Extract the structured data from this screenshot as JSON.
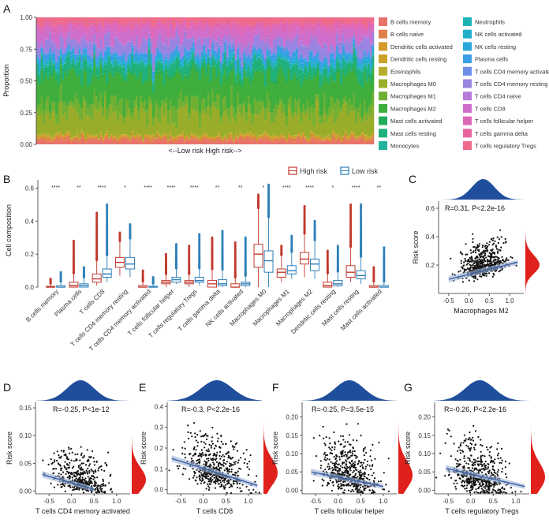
{
  "panels": {
    "A": "A",
    "B": "B",
    "C": "C",
    "D": "D",
    "E": "E",
    "F": "F",
    "G": "G"
  },
  "colors": {
    "high": "#c0392b",
    "low": "#2c7fb8",
    "density": "#1f4e9c",
    "density_right": "#e0201b",
    "fit": "#3b5fa5"
  },
  "chart_data": [
    {
      "id": "A",
      "type": "area",
      "title": "",
      "ylabel": "Proportion",
      "ylim": [
        0,
        1
      ],
      "yticks": [
        "0.00",
        "0.25",
        "0.50",
        "0.75",
        "1.00"
      ],
      "xlabel": "<--Low risk     High risk-->",
      "legend": [
        {
          "name": "B cells memory",
          "color": "#e8736b"
        },
        {
          "name": "B cells naive",
          "color": "#e0804a"
        },
        {
          "name": "Dendritic cells activated",
          "color": "#d59a2a"
        },
        {
          "name": "Dendritic cells resting",
          "color": "#c9a227"
        },
        {
          "name": "Eosinophils",
          "color": "#b7ad2c"
        },
        {
          "name": "Macrophages M0",
          "color": "#9aad2a"
        },
        {
          "name": "Macrophages M1",
          "color": "#6fb034"
        },
        {
          "name": "Macrophages M2",
          "color": "#3fae3c"
        },
        {
          "name": "Mast cells activated",
          "color": "#22ad5a"
        },
        {
          "name": "Mast cells resting",
          "color": "#1fb07c"
        },
        {
          "name": "Monocytes",
          "color": "#22b39c"
        },
        {
          "name": "Neutrophils",
          "color": "#20b3b5"
        },
        {
          "name": "NK cells activated",
          "color": "#22afca"
        },
        {
          "name": "NK cells resting",
          "color": "#2aa7dd"
        },
        {
          "name": "Plasma cells",
          "color": "#3b9de6"
        },
        {
          "name": "T cells CD4 memory activated",
          "color": "#6d8fe8"
        },
        {
          "name": "T cells CD4 memory resting",
          "color": "#9a84e2"
        },
        {
          "name": "T cells CD4 naive",
          "color": "#b87ad8"
        },
        {
          "name": "T cells CD8",
          "color": "#cf6fcb"
        },
        {
          "name": "T cells follicular helper",
          "color": "#de68b8"
        },
        {
          "name": "T cells gamma delta",
          "color": "#e766a2"
        },
        {
          "name": "T cells regulatory  Tregs",
          "color": "#ee6b8a"
        }
      ],
      "mean_proportions": [
        0.03,
        0.02,
        0.01,
        0.01,
        0.005,
        0.16,
        0.09,
        0.19,
        0.02,
        0.08,
        0.01,
        0.01,
        0.02,
        0.02,
        0.03,
        0.01,
        0.08,
        0.005,
        0.08,
        0.04,
        0.02,
        0.04
      ]
    },
    {
      "id": "B",
      "type": "box",
      "ylabel": "Cell composition",
      "ylim": [
        0,
        0.65
      ],
      "yticks": [
        "0.0",
        "0.2",
        "0.4",
        "0.6"
      ],
      "legend": [
        {
          "name": "High risk",
          "color": "#c0392b"
        },
        {
          "name": "Low risk",
          "color": "#2c7fb8"
        }
      ],
      "categories": [
        "B cells memory",
        "Plasma cells",
        "T cells CD8",
        "T cells CD4 memory resting",
        "T cells CD4 memory activated",
        "T cells follicular helper",
        "T cells regulatory  Tregs",
        "T cells gamma delta",
        "NK cells activated",
        "Macrophages M0",
        "Macrophages M1",
        "Macrophages M2",
        "Dendritic cells resting",
        "Mast cells resting",
        "Mast cells activated"
      ],
      "significance": [
        "****",
        "**",
        "****",
        "*",
        "****",
        "****",
        "****",
        "**",
        "**",
        "*",
        "****",
        "****",
        "*",
        "****",
        "**"
      ],
      "high": [
        [
          0,
          0,
          0,
          0.005,
          0.05
        ],
        [
          0,
          0,
          0.01,
          0.03,
          0.28
        ],
        [
          0.01,
          0.03,
          0.05,
          0.08,
          0.45
        ],
        [
          0.07,
          0.12,
          0.15,
          0.18,
          0.33
        ],
        [
          0,
          0,
          0,
          0.01,
          0.1
        ],
        [
          0,
          0.02,
          0.03,
          0.04,
          0.2
        ],
        [
          0,
          0.02,
          0.03,
          0.04,
          0.25
        ],
        [
          0,
          0,
          0.02,
          0.04,
          0.3
        ],
        [
          0,
          0,
          0,
          0.02,
          0.27
        ],
        [
          0,
          0.12,
          0.2,
          0.26,
          0.56
        ],
        [
          0.03,
          0.06,
          0.09,
          0.11,
          0.25
        ],
        [
          0.06,
          0.14,
          0.17,
          0.21,
          0.49
        ],
        [
          0,
          0,
          0.01,
          0.03,
          0.22
        ],
        [
          0.03,
          0.06,
          0.09,
          0.13,
          0.5
        ],
        [
          0,
          0,
          0,
          0.01,
          0.12
        ]
      ],
      "low": [
        [
          0,
          0,
          0,
          0.01,
          0.09
        ],
        [
          0,
          0,
          0.01,
          0.02,
          0.12
        ],
        [
          0.03,
          0.06,
          0.08,
          0.11,
          0.5
        ],
        [
          0.06,
          0.11,
          0.14,
          0.18,
          0.38
        ],
        [
          0,
          0,
          0,
          0.005,
          0.06
        ],
        [
          0.02,
          0.03,
          0.045,
          0.06,
          0.26
        ],
        [
          0.01,
          0.03,
          0.04,
          0.06,
          0.32
        ],
        [
          0,
          0.01,
          0.02,
          0.045,
          0.34
        ],
        [
          0,
          0.01,
          0.02,
          0.03,
          0.3
        ],
        [
          0,
          0.09,
          0.16,
          0.22,
          0.62
        ],
        [
          0.05,
          0.08,
          0.1,
          0.13,
          0.31
        ],
        [
          0.05,
          0.1,
          0.14,
          0.17,
          0.4
        ],
        [
          0,
          0.01,
          0.02,
          0.04,
          0.25
        ],
        [
          0.02,
          0.05,
          0.07,
          0.1,
          0.5
        ],
        [
          0,
          0,
          0,
          0.01,
          0.24
        ]
      ]
    },
    {
      "id": "C",
      "type": "scatter",
      "xlabel": "Macrophages M2",
      "ylabel": "Risk score",
      "annotation": "R=0.31, P<2.2e-16",
      "xlim": [
        -0.75,
        1.35
      ],
      "ylim": [
        0,
        0.65
      ],
      "xticks": [
        -0.5,
        0,
        0.5,
        1
      ],
      "xtick_labels": [
        "-0.5",
        "0.0",
        "0.5",
        "1.0"
      ],
      "yticks": [
        0.2,
        0.4,
        0.6
      ],
      "ytick_labels": [
        "0.2",
        "0.4",
        "0.6"
      ],
      "fit": {
        "x1": -0.5,
        "y1": 0.1,
        "x2": 1.2,
        "y2": 0.22
      }
    },
    {
      "id": "D",
      "type": "scatter",
      "xlabel": "T cells CD4 memory activated",
      "ylabel": "Risk score",
      "annotation": "R=-0.25, P<1e-12",
      "xlim": [
        -0.8,
        1.3
      ],
      "ylim": [
        -0.005,
        0.16
      ],
      "xticks": [
        -0.5,
        0,
        0.5,
        1
      ],
      "xtick_labels": [
        "-0.5",
        "0.0",
        "0.5",
        "1.0"
      ],
      "yticks": [
        0,
        0.05,
        0.1,
        0.15
      ],
      "ytick_labels": [
        "0.00",
        "0.05",
        "0.10",
        "0.15"
      ],
      "fit": {
        "x1": -0.65,
        "y1": 0.03,
        "x2": 0.5,
        "y2": 0.003
      }
    },
    {
      "id": "E",
      "type": "scatter",
      "xlabel": "T cells CD8",
      "ylabel": "Risk score",
      "annotation": "R=-0.3, P<2.2e-16",
      "xlim": [
        -0.8,
        1.3
      ],
      "ylim": [
        -0.02,
        0.42
      ],
      "xticks": [
        -0.5,
        0,
        0.5,
        1
      ],
      "xtick_labels": [
        "-0.5",
        "0.0",
        "0.5",
        "1.0"
      ],
      "yticks": [
        0,
        0.1,
        0.2,
        0.3,
        0.4
      ],
      "ytick_labels": [
        "0.0",
        "0.1",
        "0.2",
        "0.3",
        "0.4"
      ],
      "fit": {
        "x1": -0.7,
        "y1": 0.15,
        "x2": 1.2,
        "y2": 0.02
      }
    },
    {
      "id": "F",
      "type": "scatter",
      "xlabel": "T cells follicular helper",
      "ylabel": "Risk score",
      "annotation": "R=-0.25, P=3.5e-15",
      "xlim": [
        -0.8,
        1.3
      ],
      "ylim": [
        -0.01,
        0.24
      ],
      "xticks": [
        -0.5,
        0,
        0.5,
        1
      ],
      "xtick_labels": [
        "-0.5",
        "0.0",
        "0.5",
        "1.0"
      ],
      "yticks": [
        0,
        0.05,
        0.1,
        0.15,
        0.2
      ],
      "ytick_labels": [
        "0.00",
        "0.05",
        "0.10",
        "0.15",
        "0.20"
      ],
      "fit": {
        "x1": -0.6,
        "y1": 0.05,
        "x2": 1.0,
        "y2": 0.01
      }
    },
    {
      "id": "G",
      "type": "scatter",
      "xlabel": "T cells regulatory Tregs",
      "ylabel": "Risk score",
      "annotation": "R=-0.26, P<2.2e-16",
      "xlim": [
        -0.8,
        1.3
      ],
      "ylim": [
        -0.01,
        0.24
      ],
      "xticks": [
        -0.5,
        0,
        0.5,
        1
      ],
      "xtick_labels": [
        "-0.5",
        "0.0",
        "0.5",
        "1.0"
      ],
      "yticks": [
        0,
        0.05,
        0.1,
        0.15,
        0.2
      ],
      "ytick_labels": [
        "0.00",
        "0.05",
        "0.10",
        "0.15",
        "0.20"
      ],
      "fit": {
        "x1": -0.55,
        "y1": 0.06,
        "x2": 1.2,
        "y2": 0.01
      }
    }
  ]
}
